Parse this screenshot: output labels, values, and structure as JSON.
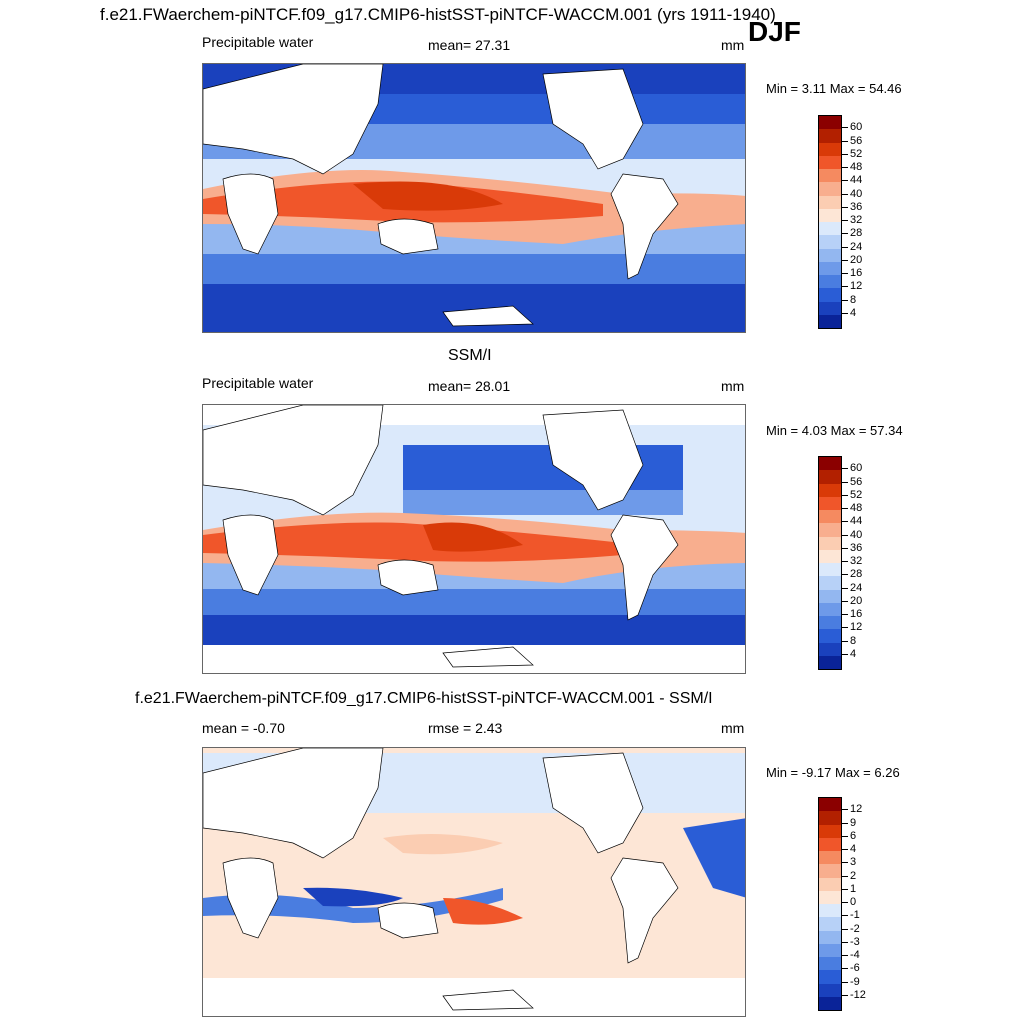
{
  "header": {
    "title": "f.e21.FWaerchem-piNTCF.f09_g17.CMIP6-histSST-piNTCF-WACCM.001 (yrs 1911-1940)",
    "season": "DJF"
  },
  "panels": [
    {
      "id": "model",
      "title": "",
      "left_label": "Precipitable water",
      "center_label": "mean=  27.31",
      "units": "mm",
      "minmax": "Min =   3.11 Max =  54.46",
      "colorbar": {
        "colors": [
          "#8b0000",
          "#b22000",
          "#d93a08",
          "#f0562a",
          "#f58a60",
          "#f8ae8e",
          "#fbcdb2",
          "#fde6d6",
          "#dbe9fb",
          "#b7d1f7",
          "#93b7f0",
          "#6e9ae9",
          "#4a7de0",
          "#2a5dd6",
          "#1a41bd",
          "#0a2398"
        ],
        "labels": [
          "60",
          "56",
          "52",
          "48",
          "44",
          "40",
          "36",
          "32",
          "28",
          "24",
          "20",
          "16",
          "12",
          "8",
          "4"
        ]
      }
    },
    {
      "id": "obs",
      "title": "SSM/I",
      "left_label": "Precipitable water",
      "center_label": "mean=  28.01",
      "units": "mm",
      "minmax": "Min =   4.03 Max =  57.34",
      "colorbar": {
        "colors": [
          "#8b0000",
          "#b22000",
          "#d93a08",
          "#f0562a",
          "#f58a60",
          "#f8ae8e",
          "#fbcdb2",
          "#fde6d6",
          "#dbe9fb",
          "#b7d1f7",
          "#93b7f0",
          "#6e9ae9",
          "#4a7de0",
          "#2a5dd6",
          "#1a41bd",
          "#0a2398"
        ],
        "labels": [
          "60",
          "56",
          "52",
          "48",
          "44",
          "40",
          "36",
          "32",
          "28",
          "24",
          "20",
          "16",
          "12",
          "8",
          "4"
        ]
      }
    },
    {
      "id": "diff",
      "title": "f.e21.FWaerchem-piNTCF.f09_g17.CMIP6-histSST-piNTCF-WACCM.001 - SSM/I",
      "left_label": "mean =  -0.70",
      "center_label": "rmse =   2.43",
      "units": "mm",
      "minmax": "Min =  -9.17 Max =   6.26",
      "colorbar": {
        "colors": [
          "#8b0000",
          "#b22000",
          "#d93a08",
          "#f0562a",
          "#f58a60",
          "#f8ae8e",
          "#fbcdb2",
          "#fde6d6",
          "#dbe9fb",
          "#b7d1f7",
          "#93b7f0",
          "#6e9ae9",
          "#4a7de0",
          "#2a5dd6",
          "#1a41bd",
          "#0a2398"
        ],
        "labels": [
          "12",
          "9",
          "6",
          "4",
          "3",
          "2",
          "1",
          "0",
          "-1",
          "-2",
          "-3",
          "-4",
          "-6",
          "-9",
          "-12"
        ]
      }
    }
  ]
}
